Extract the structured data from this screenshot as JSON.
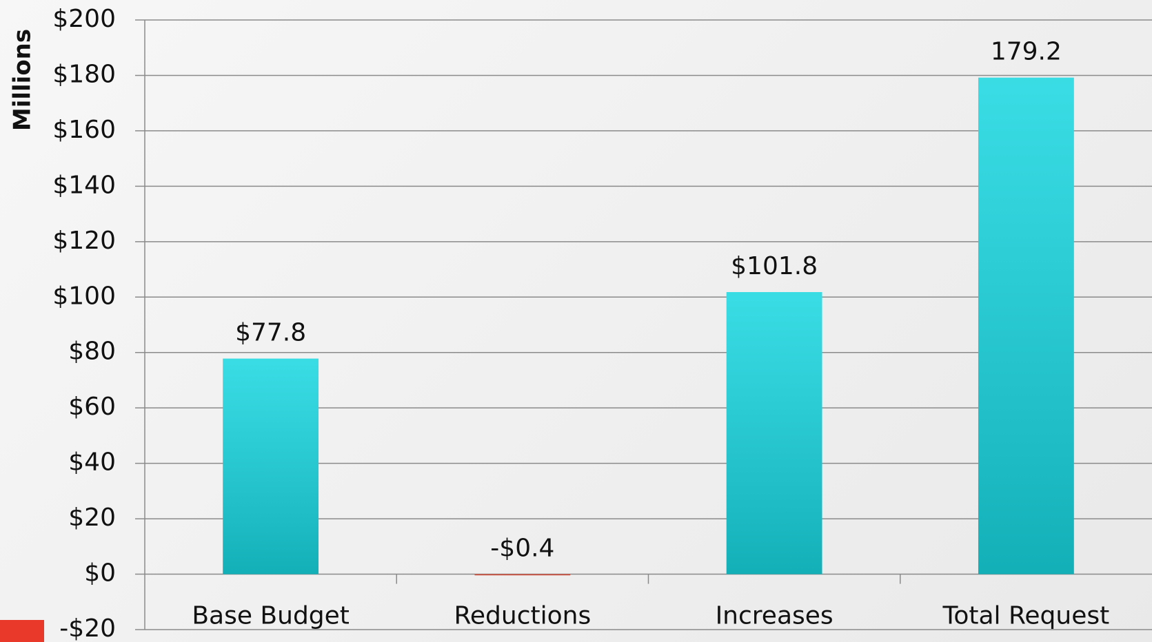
{
  "chart_data": {
    "type": "bar",
    "y_axis_label": "Millions",
    "categories": [
      "Base Budget",
      "Reductions",
      "Increases",
      "Total Request"
    ],
    "values": [
      77.8,
      -0.4,
      101.8,
      179.2
    ],
    "value_labels": [
      "$77.8",
      "-$0.4",
      "$101.8",
      "179.2"
    ],
    "colors": [
      "#17d6e0",
      "#e0402a",
      "#17d6e0",
      "#17d6e0"
    ],
    "ylim": [
      -20,
      200
    ],
    "yticks": [
      {
        "value": -20,
        "label": "-$20"
      },
      {
        "value": 0,
        "label": "$0"
      },
      {
        "value": 20,
        "label": "$20"
      },
      {
        "value": 40,
        "label": "$40"
      },
      {
        "value": 60,
        "label": "$60"
      },
      {
        "value": 80,
        "label": "$80"
      },
      {
        "value": 100,
        "label": "$100"
      },
      {
        "value": 120,
        "label": "$120"
      },
      {
        "value": 140,
        "label": "$140"
      },
      {
        "value": 160,
        "label": "$160"
      },
      {
        "value": 180,
        "label": "$180"
      },
      {
        "value": 200,
        "label": "$200"
      }
    ],
    "grid": true
  }
}
